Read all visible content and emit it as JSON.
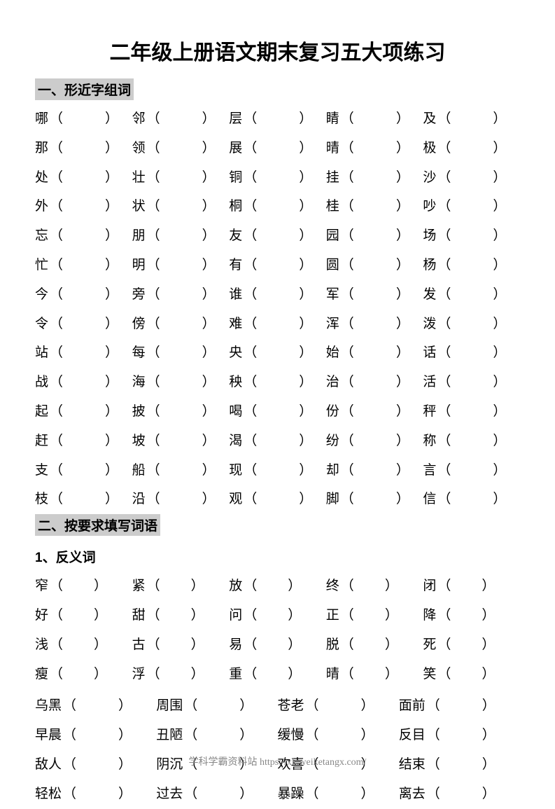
{
  "title": "二年级上册语文期末复习五大项练习",
  "section1": {
    "header": "一、形近字组词",
    "blank_width": 60,
    "rows": [
      [
        "哪",
        "邻",
        "层",
        "睛",
        "及"
      ],
      [
        "那",
        "领",
        "展",
        "晴",
        "极"
      ],
      [
        "处",
        "壮",
        "铜",
        "挂",
        "沙"
      ],
      [
        "外",
        "状",
        "桐",
        "桂",
        "吵"
      ],
      [
        "忘",
        "朋",
        "友",
        "园",
        "场"
      ],
      [
        "忙",
        "明",
        "有",
        "圆",
        "杨"
      ],
      [
        "今",
        "旁",
        "谁",
        "军",
        "发"
      ],
      [
        "令",
        "傍",
        "难",
        "浑",
        "泼"
      ],
      [
        "站",
        "每",
        "央",
        "始",
        "话"
      ],
      [
        "战",
        "海",
        "秧",
        "治",
        "活"
      ],
      [
        "起",
        "披",
        "喝",
        "份",
        "秤"
      ],
      [
        "赶",
        "坡",
        "渴",
        "纷",
        "称"
      ],
      [
        "支",
        "船",
        "现",
        "却",
        "言"
      ],
      [
        "枝",
        "沿",
        "观",
        "脚",
        "信"
      ]
    ]
  },
  "section2": {
    "header": "二、按要求填写词语",
    "sub1": {
      "label": "1、反义词",
      "blank_width_a": 44,
      "rows_a": [
        [
          "窄",
          "紧",
          "放",
          "终",
          "闭"
        ],
        [
          "好",
          "甜",
          "问",
          "正",
          "降"
        ],
        [
          "浅",
          "古",
          "易",
          "脱",
          "死"
        ],
        [
          "瘦",
          "浮",
          "重",
          "晴",
          "笑"
        ]
      ],
      "blank_width_b": 60,
      "rows_b": [
        [
          "乌黑",
          "周围",
          "苍老",
          "面前"
        ],
        [
          "早晨",
          "丑陋",
          "缓慢",
          "反目"
        ],
        [
          "敌人",
          "阴沉",
          "欢喜",
          "结束"
        ],
        [
          "轻松",
          "过去",
          "暴躁",
          "离去"
        ]
      ]
    }
  },
  "footer": "学科学霸资料站 https://xk.weiketangx.com/"
}
